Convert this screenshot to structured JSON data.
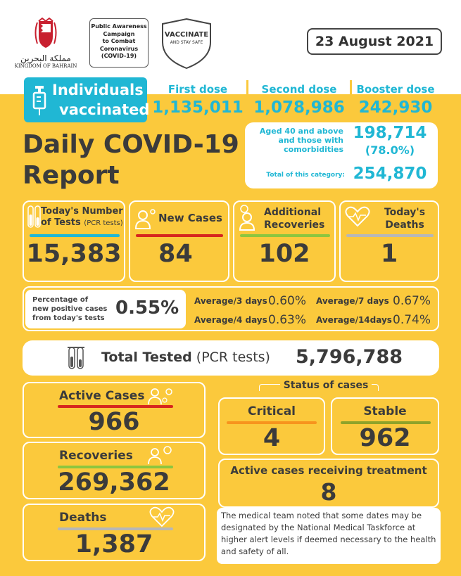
{
  "header": {
    "kingdom_arabic": "مملكة البحرين",
    "kingdom_name": "KINGDOM OF BAHRAIN",
    "campaign_lines": [
      "Public Awareness",
      "Campaign",
      "to Combat",
      "Coronavirus",
      "(COVID-19)"
    ],
    "vaccinate_title": "VACCINATE",
    "vaccinate_sub": "AND STAY SAFE",
    "date": "23 August 2021"
  },
  "vaccination": {
    "label_line1": "Individuals",
    "label_line2": "vaccinated",
    "first_dose_label": "First dose",
    "first_dose_value": "1,135,011",
    "second_dose_label": "Second dose",
    "second_dose_value": "1,078,986",
    "booster_label": "Booster dose",
    "booster_value": "242,930",
    "aged_line1": "Aged 40 and above",
    "aged_line2": "and those with",
    "aged_line3": "comorbidities",
    "aged_value": "198,714",
    "aged_percent": "(78.0%)",
    "category_total_label": "Total of this category:",
    "category_total_value": "254,870"
  },
  "title": {
    "line1": "Daily COVID-19",
    "line2": "Report"
  },
  "daily": {
    "tests_label_1": "Today's Number",
    "tests_label_2": "of Tests",
    "tests_label_suffix": "(PCR tests)",
    "tests_value": "15,383",
    "new_cases_label": "New Cases",
    "new_cases_value": "84",
    "recoveries_label_1": "Additional",
    "recoveries_label_2": "Recoveries",
    "recoveries_value": "102",
    "deaths_label_1": "Today's",
    "deaths_label_2": "Deaths",
    "deaths_value": "1"
  },
  "percentage": {
    "label_1": "Percentage of",
    "label_2": "new positive cases",
    "label_3": "from today's tests",
    "value": "0.55%",
    "avg3_label": "Average/3 days",
    "avg3_value": "0.60%",
    "avg7_label": "Average/7 days",
    "avg7_value": "0.67%",
    "avg4_label": "Average/4 days",
    "avg4_value": "0.63%",
    "avg14_label": "Average/14days",
    "avg14_value": "0.74%"
  },
  "total_tested": {
    "label": "Total Tested",
    "suffix": "(PCR tests)",
    "value": "5,796,788"
  },
  "cumulative": {
    "active_label": "Active Cases",
    "active_value": "966",
    "recoveries_label": "Recoveries",
    "recoveries_value": "269,362",
    "deaths_label": "Deaths",
    "deaths_value": "1,387"
  },
  "status": {
    "title": "Status of cases",
    "critical_label": "Critical",
    "critical_value": "4",
    "stable_label": "Stable",
    "stable_value": "962",
    "treatment_label": "Active cases receiving treatment",
    "treatment_value": "8",
    "note": "The medical team noted that some dates may be designated by the National Medical Taskforce at higher alert levels if deemed necessary to the health and safety of all."
  },
  "colors": {
    "yellow": "#fbc93c",
    "cyan": "#20b7d4",
    "red": "#d7261e",
    "green": "#8cc63f",
    "grey": "#b7b7b7",
    "orange": "#f7941d",
    "olive": "#8fa329",
    "text": "#3b3b3b"
  }
}
